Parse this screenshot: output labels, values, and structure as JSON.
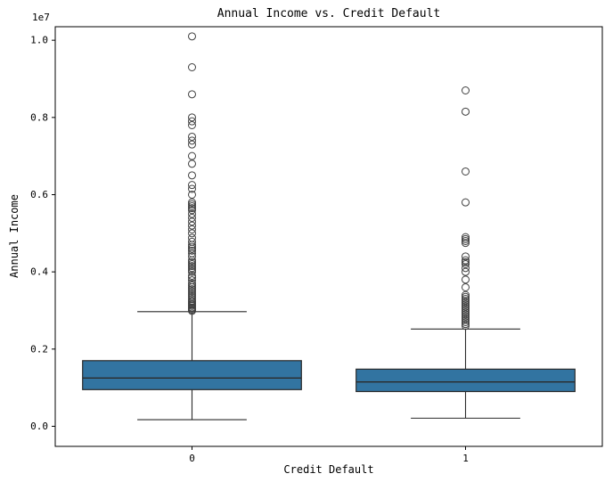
{
  "chart_data": {
    "type": "boxplot",
    "title": "Annual Income vs. Credit Default",
    "xlabel": "Credit Default",
    "ylabel": "Annual Income",
    "y_offset_label": "1e7",
    "y_scale_factor": 10000000,
    "categories": [
      "0",
      "1"
    ],
    "ylim": [
      -0.052,
      1.035
    ],
    "yticks": [
      0.0,
      0.2,
      0.4,
      0.6,
      0.8,
      1.0
    ],
    "ytick_labels": [
      "0.0",
      "0.2",
      "0.4",
      "0.6",
      "0.8",
      "1.0"
    ],
    "grid": false,
    "legend": "none",
    "box_color": "#3274a1",
    "edge_color": "#2b2b2b",
    "outlier_edge_color": "#3f3f3f",
    "series": [
      {
        "name": "0",
        "whislo": 0.017,
        "q1": 0.095,
        "med": 0.125,
        "q3": 0.17,
        "whishi": 0.297,
        "outliers": [
          0.299,
          0.302,
          0.305,
          0.308,
          0.312,
          0.315,
          0.318,
          0.322,
          0.325,
          0.33,
          0.335,
          0.34,
          0.345,
          0.35,
          0.355,
          0.36,
          0.365,
          0.37,
          0.378,
          0.385,
          0.39,
          0.4,
          0.405,
          0.41,
          0.415,
          0.42,
          0.425,
          0.43,
          0.44,
          0.448,
          0.455,
          0.46,
          0.465,
          0.47,
          0.478,
          0.488,
          0.5,
          0.51,
          0.52,
          0.53,
          0.54,
          0.55,
          0.56,
          0.565,
          0.57,
          0.575,
          0.58,
          0.6,
          0.615,
          0.625,
          0.65,
          0.68,
          0.7,
          0.73,
          0.74,
          0.75,
          0.78,
          0.79,
          0.8,
          0.86,
          0.93,
          1.01
        ]
      },
      {
        "name": "1",
        "whislo": 0.021,
        "q1": 0.09,
        "med": 0.115,
        "q3": 0.148,
        "whishi": 0.252,
        "outliers": [
          0.26,
          0.265,
          0.27,
          0.275,
          0.28,
          0.285,
          0.29,
          0.295,
          0.3,
          0.305,
          0.31,
          0.315,
          0.32,
          0.325,
          0.33,
          0.335,
          0.34,
          0.36,
          0.38,
          0.4,
          0.41,
          0.42,
          0.425,
          0.43,
          0.44,
          0.475,
          0.48,
          0.485,
          0.49,
          0.58,
          0.66,
          0.815,
          0.87
        ]
      }
    ]
  }
}
